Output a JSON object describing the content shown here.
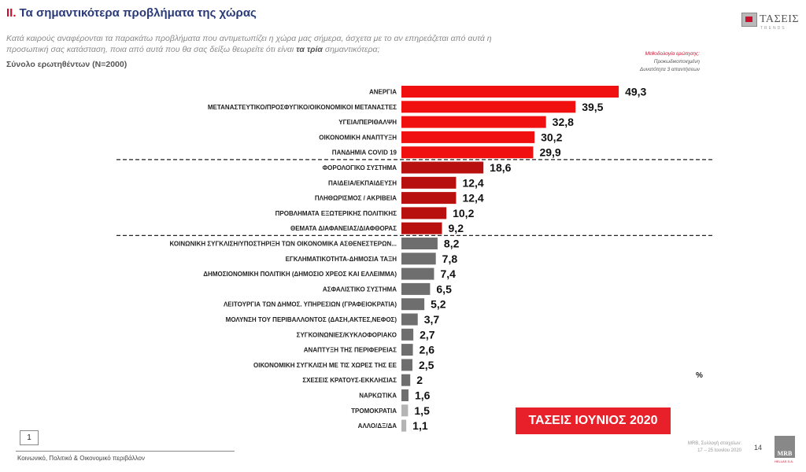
{
  "header": {
    "number": "II.",
    "title": "Τα σημαντικότερα προβλήματα της χώρας",
    "subtitle_part1": "Κατά καιρούς αναφέρονται τα παρακάτω προβλήματα που αντιμετωπίζει η χώρα μας σήμερα, άσχετα με το αν επηρεάζεται από αυτά η προσωπική σας κατάσταση, ποια από αυτά που θα σας δείξω θεωρείτε ότι είναι",
    "subtitle_bold": "τα τρία",
    "subtitle_part2": "σημαντικότερα;",
    "sample": "Σύνολο ερωτηθέντων (Ν=2000)"
  },
  "logo": {
    "text": "ΤΑΣΕΙΣ",
    "sub": "TRENDS"
  },
  "methodology": {
    "title": "Μεθοδολογία ερώτησης:",
    "line1": "Προκωδικοποιημένη",
    "line2": "Δυνατότητα 3 απαντήσεων"
  },
  "colors": {
    "red": "#f01010",
    "darkred": "#b80f0f",
    "gray": "#6e6e6e",
    "lightgray": "#b4b4b4"
  },
  "chart_data": {
    "type": "bar",
    "orientation": "horizontal",
    "unit": "%",
    "categories": [
      "ΑΝΕΡΓΙΑ",
      "ΜΕΤΑΝΑΣΤΕΥΤΙΚΟ/ΠΡΟΣΦΥΓΙΚΟ/ΟΙΚΟΝΟΜΙΚΟΙ ΜΕΤΑΝΑΣΤΕΣ",
      "ΥΓΕΙΑ/ΠΕΡΙΘΑΛΨΗ",
      "ΟΙΚΟΝΟΜΙΚΗ ΑΝΑΠΤΥΞΗ",
      "ΠΑΝΔΗΜΙΑ COVID 19",
      "ΦΟΡΟΛΟΓΙΚΟ ΣΥΣΤΗΜΑ",
      "ΠΑΙΔΕΙΑ/ΕΚΠΑΙΔΕΥΣΗ",
      "ΠΛΗΘΩΡΙΣΜΟΣ / ΑΚΡΙΒΕΙΑ",
      "ΠΡΟΒΛΗΜΑΤΑ ΕΞΩΤΕΡΙΚΗΣ ΠΟΛΙΤΙΚΗΣ",
      "ΘΕΜΑΤΑ ΔΙΑΦΑΝΕΙΑΣ/ΔΙΑΦΘΟΡΑΣ",
      "ΚΟΙΝΩΝΙΚΗ ΣΥΓΚΛΙΣΗ/ΥΠΟΣΤΗΡΙΞΗ ΤΩΝ ΟΙΚΟΝΟΜΙΚΑ ΑΣΘΕΝΕΣΤΕΡΩΝ...",
      "ΕΓΚΛΗΜΑΤΙΚΟΤΗΤΑ-ΔΗΜΟΣΙΑ ΤΑΞΗ",
      "ΔΗΜΟΣΙΟΝΟΜΙΚΗ ΠΟΛΙΤΙΚΗ (ΔΗΜΟΣΙΟ ΧΡΕΟΣ ΚΑΙ ΕΛΛΕΙΜΜΑ)",
      "ΑΣΦΑΛΙΣΤΙΚΟ ΣΥΣΤΗΜΑ",
      "ΛΕΙΤΟΥΡΓΙΑ ΤΩΝ ΔΗΜΟΣ. ΥΠΗΡΕΣΙΩΝ (ΓΡΑΦΕΙΟΚΡΑΤΙΑ)",
      "ΜΟΛΥΝΣΗ ΤΟΥ ΠΕΡΙΒΑΛΛΟΝΤΟΣ (ΔΑΣΗ,ΑΚΤΕΣ,ΝΕΦΟΣ)",
      "ΣΥΓΚΟΙΝΩΝΙΕΣ/ΚΥΚΛΟΦΟΡΙΑΚΟ",
      "ΑΝΑΠΤΥΞΗ ΤΗΣ ΠΕΡΙΦΕΡΕΙΑΣ",
      "ΟΙΚΟΝΟΜΙΚΗ ΣΥΓΚΛΙΣΗ ΜΕ ΤΙΣ ΧΩΡΕΣ ΤΗΣ ΕΕ",
      "ΣΧΕΣΕΙΣ ΚΡΑΤΟΥΣ-ΕΚΚΛΗΣΙΑΣ",
      "ΝΑΡΚΩΤΙΚΑ",
      "ΤΡΟΜΟΚΡΑΤΙΑ",
      "ΑΛΛΟ/ΔΞ/ΔΑ"
    ],
    "values": [
      49.3,
      39.5,
      32.8,
      30.2,
      29.9,
      18.6,
      12.4,
      12.4,
      10.2,
      9.2,
      8.2,
      7.8,
      7.4,
      6.5,
      5.2,
      3.7,
      2.7,
      2.6,
      2.5,
      2,
      1.6,
      1.5,
      1.1
    ],
    "value_labels": [
      "49,3",
      "39,5",
      "32,8",
      "30,2",
      "29,9",
      "18,6",
      "12,4",
      "12,4",
      "10,2",
      "9,2",
      "8,2",
      "7,8",
      "7,4",
      "6,5",
      "5,2",
      "3,7",
      "2,7",
      "2,6",
      "2,5",
      "2",
      "1,6",
      "1,5",
      "1,1"
    ],
    "groups": [
      "red",
      "red",
      "red",
      "red",
      "red",
      "darkred",
      "darkred",
      "darkred",
      "darkred",
      "darkred",
      "gray",
      "gray",
      "gray",
      "gray",
      "gray",
      "gray",
      "gray",
      "gray",
      "gray",
      "gray",
      "gray",
      "lightgray",
      "lightgray"
    ],
    "separators_after_index": [
      4,
      9
    ],
    "xlim": [
      0,
      50
    ],
    "legend": "none",
    "grid": false
  },
  "percent_label": "%",
  "stamp": "ΤΑΣΕΙΣ ΙΟΥΝΙΟΣ 2020",
  "footer": {
    "page_box": "1",
    "text": "Κοινωνικό, Πολιτικό & Οικονομικό περιβάλλον",
    "source_line1": "MRB, Συλλογή στοιχείων:",
    "source_line2": "17 – 25 Ιουνίου 2020",
    "page_number": "14",
    "brand": "MRB",
    "brand_sub": "HELLAS S.A."
  }
}
